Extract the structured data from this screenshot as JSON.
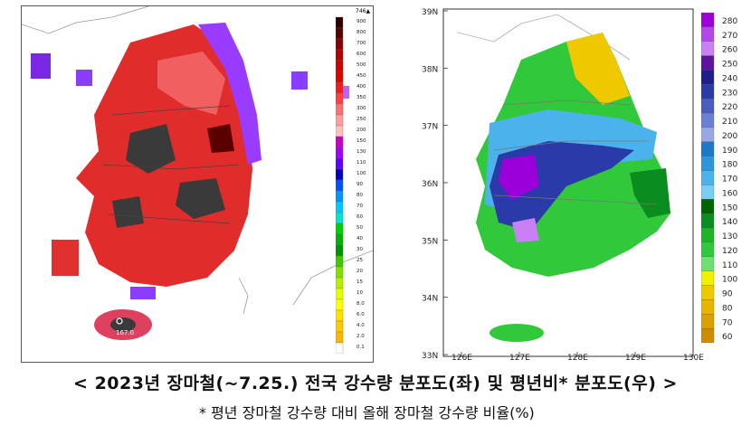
{
  "left_map": {
    "max_label": "746▲",
    "marker_label": "167.0",
    "scale_labels": [
      "900",
      "800",
      "700",
      "600",
      "500",
      "450",
      "400",
      "350",
      "300",
      "250",
      "200",
      "150",
      "130",
      "110",
      "100",
      "90",
      "80",
      "70",
      "60",
      "50",
      "40",
      "30",
      "25",
      "20",
      "15",
      "10",
      "8.0",
      "6.0",
      "4.0",
      "2.0",
      "0.1"
    ],
    "scale_colors": [
      "#2b0000",
      "#5a0000",
      "#8b0000",
      "#b40000",
      "#d10000",
      "#e00000",
      "#f01c1c",
      "#ff4040",
      "#ff7070",
      "#ff9c9c",
      "#ffc0c0",
      "#c800c8",
      "#a000ff",
      "#6000ff",
      "#0000c8",
      "#0050ff",
      "#0096ff",
      "#00c8ff",
      "#00e6c8",
      "#00d200",
      "#00b400",
      "#009600",
      "#40c800",
      "#80e000",
      "#b4f000",
      "#e6ff00",
      "#ffff00",
      "#ffe000",
      "#ffc800",
      "#ffb400",
      "#ffffff"
    ]
  },
  "right_map": {
    "lat_labels": [
      "39N",
      "38N",
      "37N",
      "36N",
      "35N",
      "34N",
      "33N"
    ],
    "lon_labels": [
      "126E",
      "127E",
      "128E",
      "129E",
      "130E"
    ],
    "scale_labels": [
      "280",
      "270",
      "260",
      "250",
      "240",
      "230",
      "220",
      "210",
      "200",
      "190",
      "180",
      "170",
      "160",
      "150",
      "140",
      "130",
      "120",
      "110",
      "100",
      "90",
      "80",
      "70",
      "60"
    ],
    "scale_colors": [
      "#9b00d8",
      "#b048ec",
      "#c880f4",
      "#5a14a0",
      "#1e1e8c",
      "#2a3aa8",
      "#4a5cc0",
      "#6a80d4",
      "#98a8e4",
      "#1e78c8",
      "#2e96dc",
      "#4cb2ec",
      "#78cef4",
      "#006400",
      "#0a8c1e",
      "#1eb428",
      "#32c83c",
      "#6ee070",
      "#f0f000",
      "#f0c800",
      "#e8b400",
      "#dca000",
      "#d08c00"
    ]
  },
  "caption": {
    "main": "< 2023년 장마철(~7.25.) 전국 강수량 분포도(좌) 및 평년비* 분포도(우) >",
    "note": "* 평년 장마철 강수량 대비 올해 장마철 강수량 비율(%)"
  }
}
